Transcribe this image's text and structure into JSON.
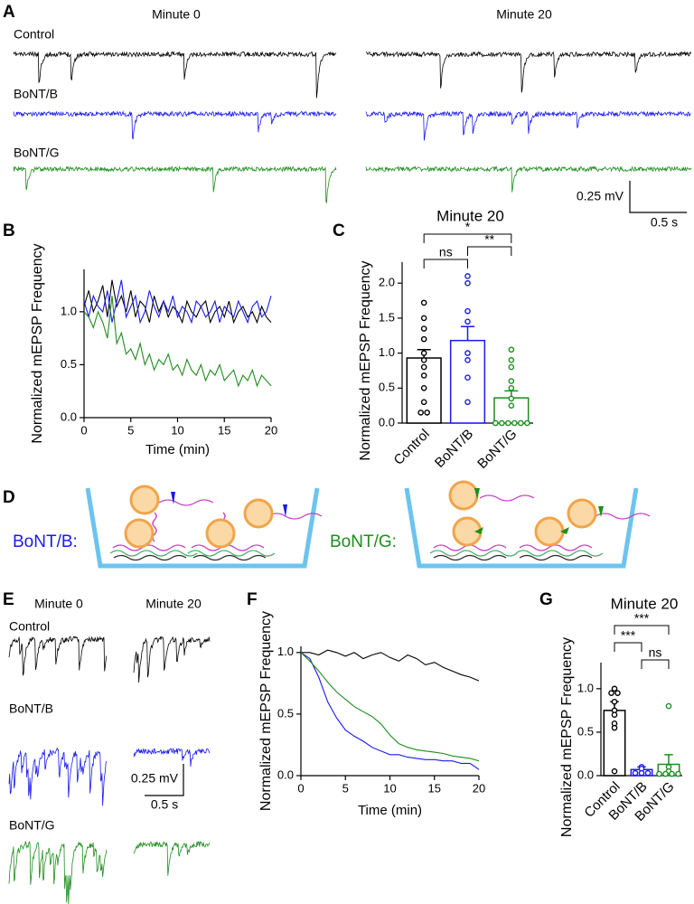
{
  "figure": {
    "panel_labels": [
      "A",
      "B",
      "C",
      "D",
      "E",
      "F",
      "G"
    ],
    "panel_a": {
      "minute_0": "Minute 0",
      "minute_20": "Minute 20",
      "traces": [
        "Control",
        "BoNT/B",
        "BoNT/G"
      ],
      "scale_voltage": "0.25 mV",
      "scale_time": "0.5 s"
    },
    "panel_d": {
      "labels": [
        "BoNT/B:",
        "BoNT/G:"
      ]
    },
    "panel_e": {
      "minute_0": "Minute 0",
      "minute_20": "Minute 20",
      "traces": [
        "Control",
        "BoNT/B",
        "BoNT/G"
      ],
      "scale_voltage": "0.25 mV",
      "scale_time": "0.5 s"
    }
  },
  "chart_data": [
    {
      "type": "line",
      "xlabel": "Time (min)",
      "ylabel": "Normalized mEPSP Frequency",
      "x": [
        0,
        0.5,
        1,
        1.5,
        2,
        2.5,
        3,
        3.5,
        4,
        4.5,
        5,
        5.5,
        6,
        6.5,
        7,
        7.5,
        8,
        8.5,
        9,
        9.5,
        10,
        10.5,
        11,
        11.5,
        12,
        12.5,
        13,
        13.5,
        14,
        14.5,
        15,
        15.5,
        16,
        16.5,
        17,
        17.5,
        18,
        18.5,
        19,
        19.5,
        20
      ],
      "series": [
        {
          "color": "#000000",
          "values": [
            1.05,
            1.2,
            1.0,
            1.1,
            1.25,
            0.95,
            1.3,
            1.05,
            1.15,
            1.0,
            1.2,
            0.95,
            1.1,
            1.05,
            0.9,
            1.15,
            1.0,
            1.1,
            0.95,
            1.05,
            1.0,
            0.9,
            1.1,
            1.0,
            0.95,
            1.05,
            1.1,
            0.9,
            1.0,
            1.05,
            0.95,
            1.1,
            0.9,
            1.0,
            1.05,
            0.95,
            1.0,
            0.9,
            1.05,
            0.95,
            0.9
          ]
        },
        {
          "color": "#1a1aee",
          "values": [
            1.1,
            0.95,
            1.15,
            1.05,
            1.0,
            1.2,
            0.9,
            1.1,
            1.3,
            0.95,
            1.05,
            1.15,
            0.9,
            1.0,
            1.2,
            1.05,
            0.95,
            1.1,
            1.0,
            1.15,
            0.95,
            1.05,
            1.0,
            0.9,
            1.1,
            1.05,
            0.95,
            1.0,
            1.1,
            0.9,
            1.05,
            1.0,
            0.95,
            1.1,
            1.0,
            0.9,
            1.05,
            1.1,
            0.95,
            1.0,
            1.15
          ]
        },
        {
          "color": "#1e8c1e",
          "values": [
            1.0,
            0.95,
            0.85,
            1.0,
            0.9,
            0.75,
            1.15,
            0.7,
            0.8,
            0.6,
            0.65,
            0.55,
            0.7,
            0.5,
            0.6,
            0.45,
            0.55,
            0.5,
            0.6,
            0.45,
            0.5,
            0.4,
            0.55,
            0.45,
            0.4,
            0.5,
            0.35,
            0.45,
            0.4,
            0.5,
            0.35,
            0.4,
            0.45,
            0.3,
            0.4,
            0.35,
            0.45,
            0.3,
            0.4,
            0.35,
            0.3
          ]
        }
      ],
      "xlim": [
        0,
        20
      ],
      "xticks": [
        0,
        5,
        10,
        15,
        20
      ],
      "ylim": [
        0,
        1.4
      ],
      "yticks": [
        {
          "value": 0,
          "label": "0.0"
        },
        {
          "value": 0.5,
          "label": "0.5"
        },
        {
          "value": 1,
          "label": "1.0"
        }
      ]
    },
    {
      "type": "bar",
      "title": "Minute 20",
      "ylabel": "Normalized mEPSP Frequency",
      "categories": [
        "Control",
        "BoNT/B",
        "BoNT/G"
      ],
      "colors": [
        "#000000",
        "#1a1aee",
        "#1e8c1e"
      ],
      "values": [
        0.93,
        1.18,
        0.36
      ],
      "errors": [
        0.12,
        0.2,
        0.1
      ],
      "points": [
        [
          1.72,
          1.5,
          1.35,
          1.2,
          1.0,
          0.9,
          0.8,
          0.68,
          0.5,
          0.3,
          0.15,
          0.15
        ],
        [
          2.1,
          2.0,
          1.6,
          1.45,
          1.0,
          0.9,
          0.65,
          0.3
        ],
        [
          1.05,
          0.9,
          0.8,
          0.6,
          0.5,
          0.35,
          0.25,
          0,
          0,
          0,
          0,
          0,
          0
        ]
      ],
      "significance": [
        {
          "pair": [
            0,
            1
          ],
          "label": "ns"
        },
        {
          "pair": [
            1,
            2
          ],
          "label": "**"
        },
        {
          "pair": [
            0,
            2
          ],
          "label": "*"
        }
      ],
      "ylim": [
        0,
        2.3
      ],
      "yticks": [
        {
          "value": 0,
          "label": "0.0"
        },
        {
          "value": 0.5,
          "label": "0.5"
        },
        {
          "value": 1,
          "label": "1.0"
        },
        {
          "value": 1.5,
          "label": "1.5"
        },
        {
          "value": 2,
          "label": "2.0"
        }
      ]
    },
    {
      "type": "line",
      "xlabel": "Time (min)",
      "ylabel": "Normalized mEPSP Frequency",
      "x": [
        0,
        1,
        2,
        3,
        4,
        5,
        6,
        7,
        8,
        9,
        10,
        11,
        12,
        13,
        14,
        15,
        16,
        17,
        18,
        19,
        20
      ],
      "series": [
        {
          "color": "#000000",
          "values": [
            1.0,
            1.0,
            0.98,
            1.02,
            1.0,
            0.97,
            1.0,
            0.95,
            0.98,
            1.0,
            0.96,
            0.93,
            0.98,
            0.95,
            0.9,
            0.92,
            0.88,
            0.85,
            0.82,
            0.8,
            0.77
          ]
        },
        {
          "color": "#1a1aee",
          "values": [
            1.0,
            0.95,
            0.8,
            0.6,
            0.47,
            0.37,
            0.32,
            0.28,
            0.23,
            0.2,
            0.17,
            0.17,
            0.15,
            0.14,
            0.13,
            0.13,
            0.12,
            0.12,
            0.1,
            0.1,
            0.05
          ]
        },
        {
          "color": "#1e8c1e",
          "values": [
            1.0,
            0.93,
            0.85,
            0.76,
            0.68,
            0.62,
            0.56,
            0.52,
            0.48,
            0.42,
            0.33,
            0.26,
            0.23,
            0.21,
            0.2,
            0.19,
            0.18,
            0.16,
            0.15,
            0.14,
            0.12
          ]
        }
      ],
      "xlim": [
        0,
        20
      ],
      "xticks": [
        0,
        5,
        10,
        15,
        20
      ],
      "ylim": [
        0,
        1.05
      ],
      "yticks": [
        {
          "value": 0,
          "label": "0.0"
        },
        {
          "value": 0.5,
          "label": "0.5"
        },
        {
          "value": 1,
          "label": "1.0"
        }
      ]
    },
    {
      "type": "bar",
      "title": "Minute 20",
      "ylabel": "Normalized mEPSP Frequency",
      "categories": [
        "Control",
        "BoNT/B",
        "BoNT/G"
      ],
      "colors": [
        "#000000",
        "#1a1aee",
        "#1e8c1e"
      ],
      "values": [
        0.75,
        0.07,
        0.13
      ],
      "errors": [
        0.1,
        0.03,
        0.11
      ],
      "points": [
        [
          1.0,
          0.95,
          0.95,
          0.85,
          0.75,
          0.7,
          0.6,
          0.55,
          0.05
        ],
        [
          0.1,
          0.08,
          0.03,
          0.03,
          0.03
        ],
        [
          0.8,
          0.1,
          0.05,
          0.02,
          0.02,
          0.02,
          0.02
        ]
      ],
      "significance": [
        {
          "pair": [
            1,
            2
          ],
          "label": "ns"
        },
        {
          "pair": [
            0,
            1
          ],
          "label": "***"
        },
        {
          "pair": [
            0,
            2
          ],
          "label": "***"
        }
      ],
      "ylim": [
        0,
        1.3
      ],
      "yticks": [
        {
          "value": 0,
          "label": "0.0"
        },
        {
          "value": 0.5,
          "label": "0.5"
        },
        {
          "value": 1,
          "label": "1.0"
        }
      ]
    }
  ]
}
